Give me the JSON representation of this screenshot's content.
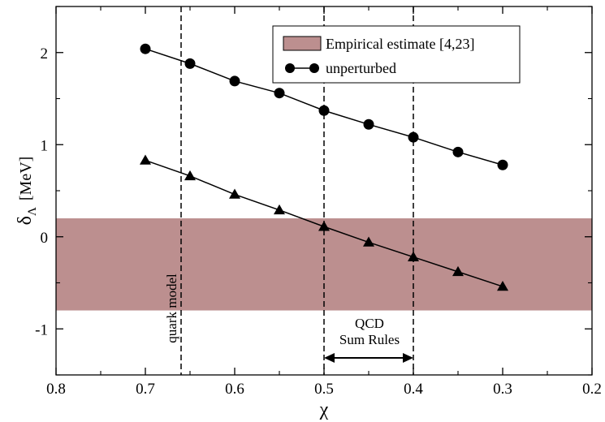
{
  "chart_data": {
    "type": "line",
    "xlabel": "χ",
    "ylabel_main": "δ",
    "ylabel_sub": "Λ",
    "ylabel_unit": "[MeV]",
    "xlim": [
      0.8,
      0.2
    ],
    "ylim": [
      -1.5,
      2.5
    ],
    "x_axis_reversed": true,
    "xticks": [
      0.8,
      0.7,
      0.6,
      0.5,
      0.4,
      0.3,
      0.2
    ],
    "xtick_labels": [
      "0.8",
      "0.7",
      "0.6",
      "0.5",
      "0.4",
      "0.3",
      "0.2"
    ],
    "yticks": [
      -1,
      0,
      1,
      2
    ],
    "ytick_labels": [
      "-1",
      "0",
      "1",
      "2"
    ],
    "grid": false,
    "legend_position": "top-right",
    "band": {
      "name": "Empirical estimate [4,23]",
      "y_range": [
        -0.8,
        0.2
      ],
      "color": "#bc8f8f"
    },
    "series": [
      {
        "name": "unperturbed",
        "marker": "circle",
        "color": "#000000",
        "x": [
          0.7,
          0.65,
          0.6,
          0.55,
          0.5,
          0.45,
          0.4,
          0.35,
          0.3
        ],
        "y": [
          2.04,
          1.88,
          1.69,
          1.56,
          1.37,
          1.22,
          1.08,
          0.92,
          0.78
        ]
      },
      {
        "name": "",
        "marker": "triangle",
        "color": "#000000",
        "x": [
          0.7,
          0.65,
          0.6,
          0.55,
          0.5,
          0.45,
          0.4,
          0.35,
          0.3
        ],
        "y": [
          0.83,
          0.66,
          0.46,
          0.29,
          0.11,
          -0.06,
          -0.22,
          -0.38,
          -0.54
        ]
      }
    ],
    "vlines": [
      0.66,
      0.5,
      0.4
    ],
    "annotations": {
      "quark_model": "quark model",
      "qcd_line1": "QCD",
      "qcd_line2": "Sum Rules",
      "qcd_arrow_range": [
        0.5,
        0.4
      ]
    }
  }
}
